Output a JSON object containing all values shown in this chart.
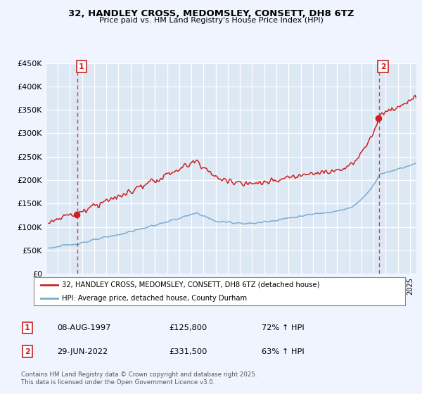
{
  "title": "32, HANDLEY CROSS, MEDOMSLEY, CONSETT, DH8 6TZ",
  "subtitle": "Price paid vs. HM Land Registry's House Price Index (HPI)",
  "sale1_date": "08-AUG-1997",
  "sale1_price": 125800,
  "sale1_pct": "72% ↑ HPI",
  "sale2_date": "29-JUN-2022",
  "sale2_price": 331500,
  "sale2_pct": "63% ↑ HPI",
  "legend_line1": "32, HANDLEY CROSS, MEDOMSLEY, CONSETT, DH8 6TZ (detached house)",
  "legend_line2": "HPI: Average price, detached house, County Durham",
  "footer": "Contains HM Land Registry data © Crown copyright and database right 2025.\nThis data is licensed under the Open Government Licence v3.0.",
  "hpi_color": "#7aadcf",
  "sale_color": "#cc2222",
  "bg_color": "#f0f4ff",
  "plot_bg": "#dde8f5",
  "grid_color": "#ffffff",
  "ylim": [
    0,
    450000
  ],
  "yticks": [
    0,
    50000,
    100000,
    150000,
    200000,
    250000,
    300000,
    350000,
    400000,
    450000
  ],
  "xlim_start": 1995.25,
  "xlim_end": 2025.5
}
